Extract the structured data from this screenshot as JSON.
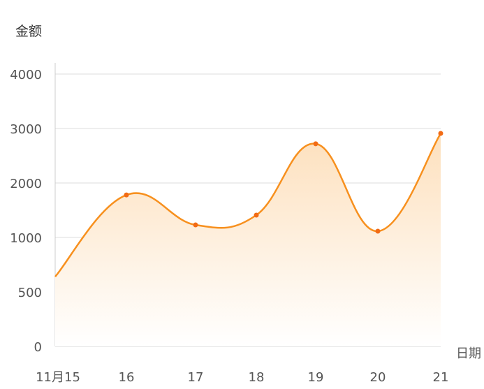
{
  "chart_data": {
    "type": "area",
    "title": "",
    "ylabel": "金额",
    "xlabel": "日期",
    "categories": [
      "11月15",
      "16",
      "17",
      "18",
      "19",
      "20",
      "21"
    ],
    "values": [
      640,
      1780,
      1230,
      1410,
      2720,
      1115,
      2910
    ],
    "yticks": [
      0,
      500,
      1000,
      2000,
      3000,
      4000
    ],
    "ylim": [
      0,
      4000
    ],
    "grid": true,
    "smooth": true,
    "colors": {
      "line": "#f7901e",
      "point": "#f26b15",
      "fill_top": "#fde0bd",
      "fill_bottom": "#ffffff"
    }
  }
}
